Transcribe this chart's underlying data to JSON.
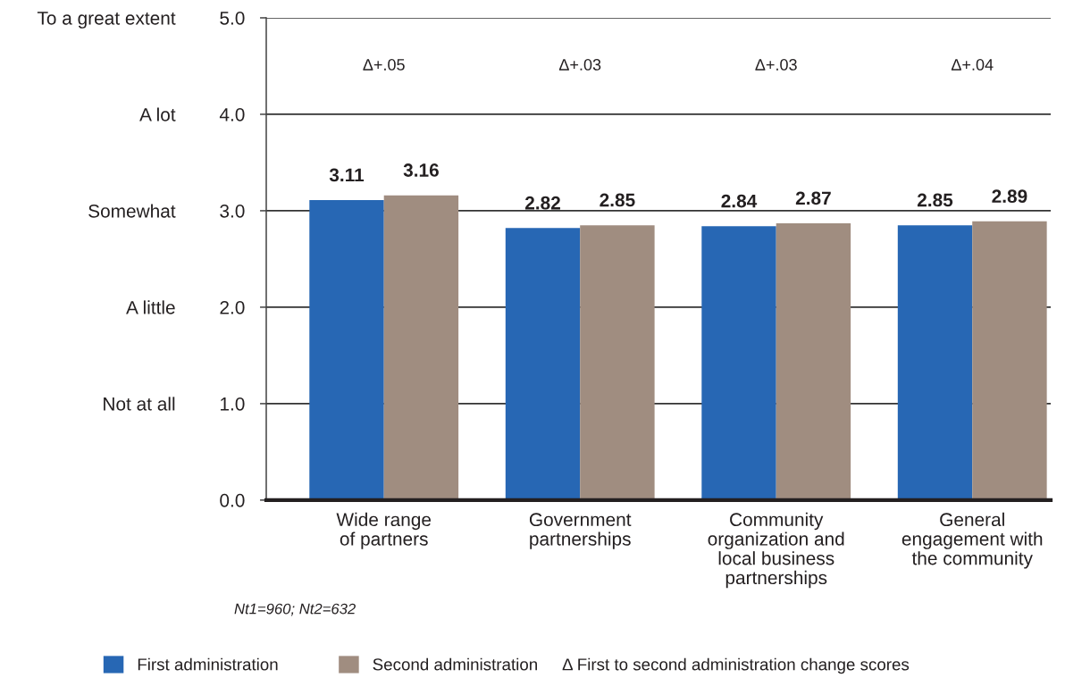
{
  "chart_data": {
    "type": "bar",
    "categories": [
      "Wide range\nof partners",
      "Government\npartnerships",
      "Community\norganization and\nlocal business\npartnerships",
      "General\nengagement with\nthe community"
    ],
    "series": [
      {
        "name": "First administration",
        "color": "#2767b4",
        "values": [
          3.11,
          2.82,
          2.84,
          2.85
        ]
      },
      {
        "name": "Second administration",
        "color": "#a08d80",
        "values": [
          3.16,
          2.85,
          2.87,
          2.89
        ]
      }
    ],
    "ylim": [
      0,
      5
    ],
    "yticks": [
      {
        "value": 0,
        "label": "0.0"
      },
      {
        "value": 1,
        "label": "1.0"
      },
      {
        "value": 2,
        "label": "2.0"
      },
      {
        "value": 3,
        "label": "3.0"
      },
      {
        "value": 4,
        "label": "4.0"
      },
      {
        "value": 5,
        "label": "5.0"
      }
    ],
    "y2_categories": [
      "To a great extent",
      "A lot",
      "Somewhat",
      "A little",
      "Not at all",
      null
    ],
    "grid": "y",
    "legend": "bottom",
    "data_labels": true,
    "annotations": [
      "Δ+.05",
      "Δ+.03",
      "Δ+.03",
      "Δ+.04",
      "Nt1=960; Nt2=632",
      "Δ First to second administration change scores"
    ]
  }
}
